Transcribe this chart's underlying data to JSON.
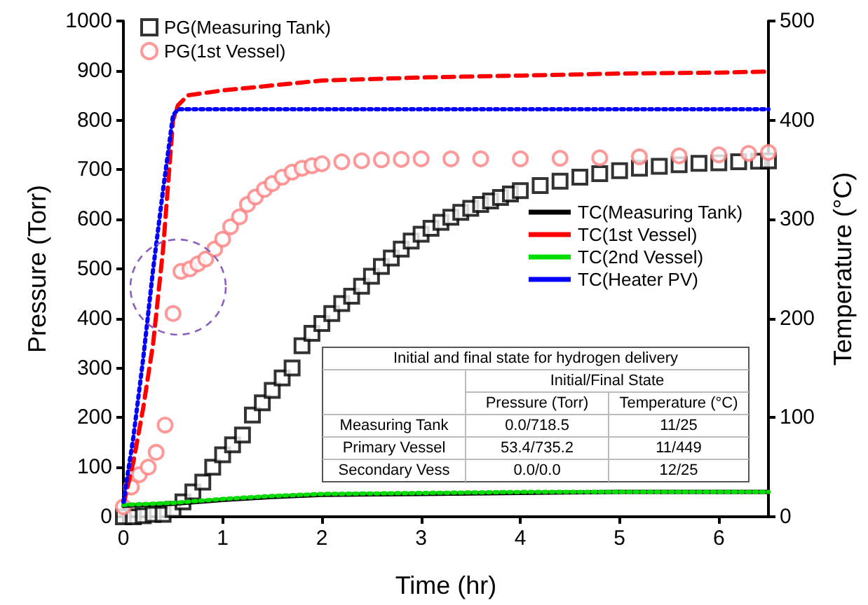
{
  "chart_data": {
    "type": "line",
    "xlabel": "Time (hr)",
    "ylabel": "Pressure (Torr)",
    "y2label": "Temperature (°C)",
    "xlim": [
      0,
      6.5
    ],
    "xticks": [
      0,
      1,
      2,
      3,
      4,
      5,
      6
    ],
    "ylim": [
      0,
      1000
    ],
    "yticks": [
      0,
      100,
      200,
      300,
      400,
      500,
      600,
      700,
      800,
      900,
      1000
    ],
    "y2lim": [
      0,
      500
    ],
    "y2ticks": [
      0,
      100,
      200,
      300,
      400,
      500
    ],
    "grid": false,
    "legend": "top left",
    "series": [
      {
        "name": "PG(Measuring Tank)",
        "type": "scatter",
        "marker": "square",
        "color": "#000000",
        "x": [
          0,
          0.1,
          0.2,
          0.3,
          0.4,
          0.5,
          0.6,
          0.7,
          0.8,
          0.9,
          1.0,
          1.1,
          1.2,
          1.3,
          1.4,
          1.5,
          1.6,
          1.7,
          1.8,
          1.9,
          2.0,
          2.1,
          2.2,
          2.3,
          2.4,
          2.5,
          2.6,
          2.7,
          2.8,
          2.9,
          3.0,
          3.1,
          3.2,
          3.3,
          3.4,
          3.5,
          3.6,
          3.7,
          3.8,
          3.9,
          4.0,
          4.2,
          4.4,
          4.6,
          4.8,
          5.0,
          5.2,
          5.4,
          5.6,
          5.8,
          6.0,
          6.2,
          6.4,
          6.5
        ],
        "values": [
          0,
          0,
          2,
          5,
          5,
          15,
          30,
          50,
          70,
          100,
          125,
          145,
          165,
          205,
          230,
          255,
          280,
          300,
          345,
          370,
          390,
          410,
          430,
          445,
          465,
          485,
          505,
          522,
          540,
          556,
          570,
          582,
          594,
          604,
          614,
          622,
          630,
          637,
          644,
          651,
          658,
          668,
          677,
          685,
          692,
          698,
          703,
          707,
          710,
          713,
          714,
          716,
          717,
          718
        ]
      },
      {
        "name": "PG(1st Vessel)",
        "type": "scatter",
        "marker": "circle",
        "color": "#ff8080",
        "x": [
          0,
          0.08,
          0.16,
          0.25,
          0.33,
          0.42,
          0.5,
          0.58,
          0.67,
          0.75,
          0.83,
          0.92,
          1.0,
          1.08,
          1.17,
          1.25,
          1.33,
          1.42,
          1.5,
          1.6,
          1.7,
          1.8,
          1.9,
          2.0,
          2.2,
          2.4,
          2.6,
          2.8,
          3.0,
          3.3,
          3.6,
          4.0,
          4.4,
          4.8,
          5.2,
          5.6,
          6.0,
          6.3,
          6.5
        ],
        "values": [
          20,
          60,
          85,
          100,
          130,
          185,
          410,
          495,
          500,
          510,
          520,
          540,
          560,
          585,
          605,
          630,
          645,
          660,
          672,
          685,
          695,
          703,
          708,
          712,
          716,
          718,
          720,
          721,
          722,
          722,
          722,
          722,
          723,
          724,
          726,
          728,
          730,
          733,
          735
        ]
      },
      {
        "name": "TC(Measuring Tank)",
        "axis": "y2",
        "line_style": "solid",
        "marker": "none",
        "color": "#000000",
        "x": [
          0,
          0.5,
          1,
          1.5,
          2,
          3,
          4,
          5,
          6.5
        ],
        "values": [
          11,
          13,
          17,
          20,
          22,
          23,
          24,
          25,
          25
        ]
      },
      {
        "name": "TC(1st Vessel)",
        "axis": "y2",
        "line_style": "dashed",
        "marker": "none",
        "color": "#ff0000",
        "x": [
          0,
          0.1,
          0.2,
          0.3,
          0.4,
          0.5,
          0.55,
          0.65,
          1,
          1.5,
          2,
          3,
          4,
          5,
          6,
          6.5
        ],
        "values": [
          12,
          55,
          110,
          175,
          270,
          400,
          415,
          425,
          430,
          435,
          440,
          443,
          445,
          447,
          448,
          449
        ]
      },
      {
        "name": "TC(2nd Vessel)",
        "axis": "y2",
        "line_style": "dotted",
        "marker": "none",
        "color": "#00dd00",
        "x": [
          0,
          0.5,
          1,
          1.5,
          2,
          3,
          4,
          6.5
        ],
        "values": [
          12,
          14,
          18,
          21,
          23,
          24,
          25,
          25
        ]
      },
      {
        "name": "TC(Heater PV)",
        "axis": "y2",
        "line_style": "dotted",
        "marker": "none",
        "color": "#0000ff",
        "x": [
          0,
          0.1,
          0.2,
          0.3,
          0.4,
          0.5,
          0.55,
          6.5
        ],
        "values": [
          15,
          80,
          160,
          250,
          330,
          405,
          411,
          411
        ]
      }
    ],
    "annotations": [
      "Initial and final state for hydrogen delivery",
      "Initial/Final State",
      "Pressure (Torr)",
      "Temperature (°C)",
      "Measuring Tank",
      "0.0/718.5",
      "11/25",
      "Primary Vessel",
      "53.4/735.2",
      "11/449",
      "Secondary Vess",
      "0.0/0.0",
      "12/25"
    ]
  }
}
